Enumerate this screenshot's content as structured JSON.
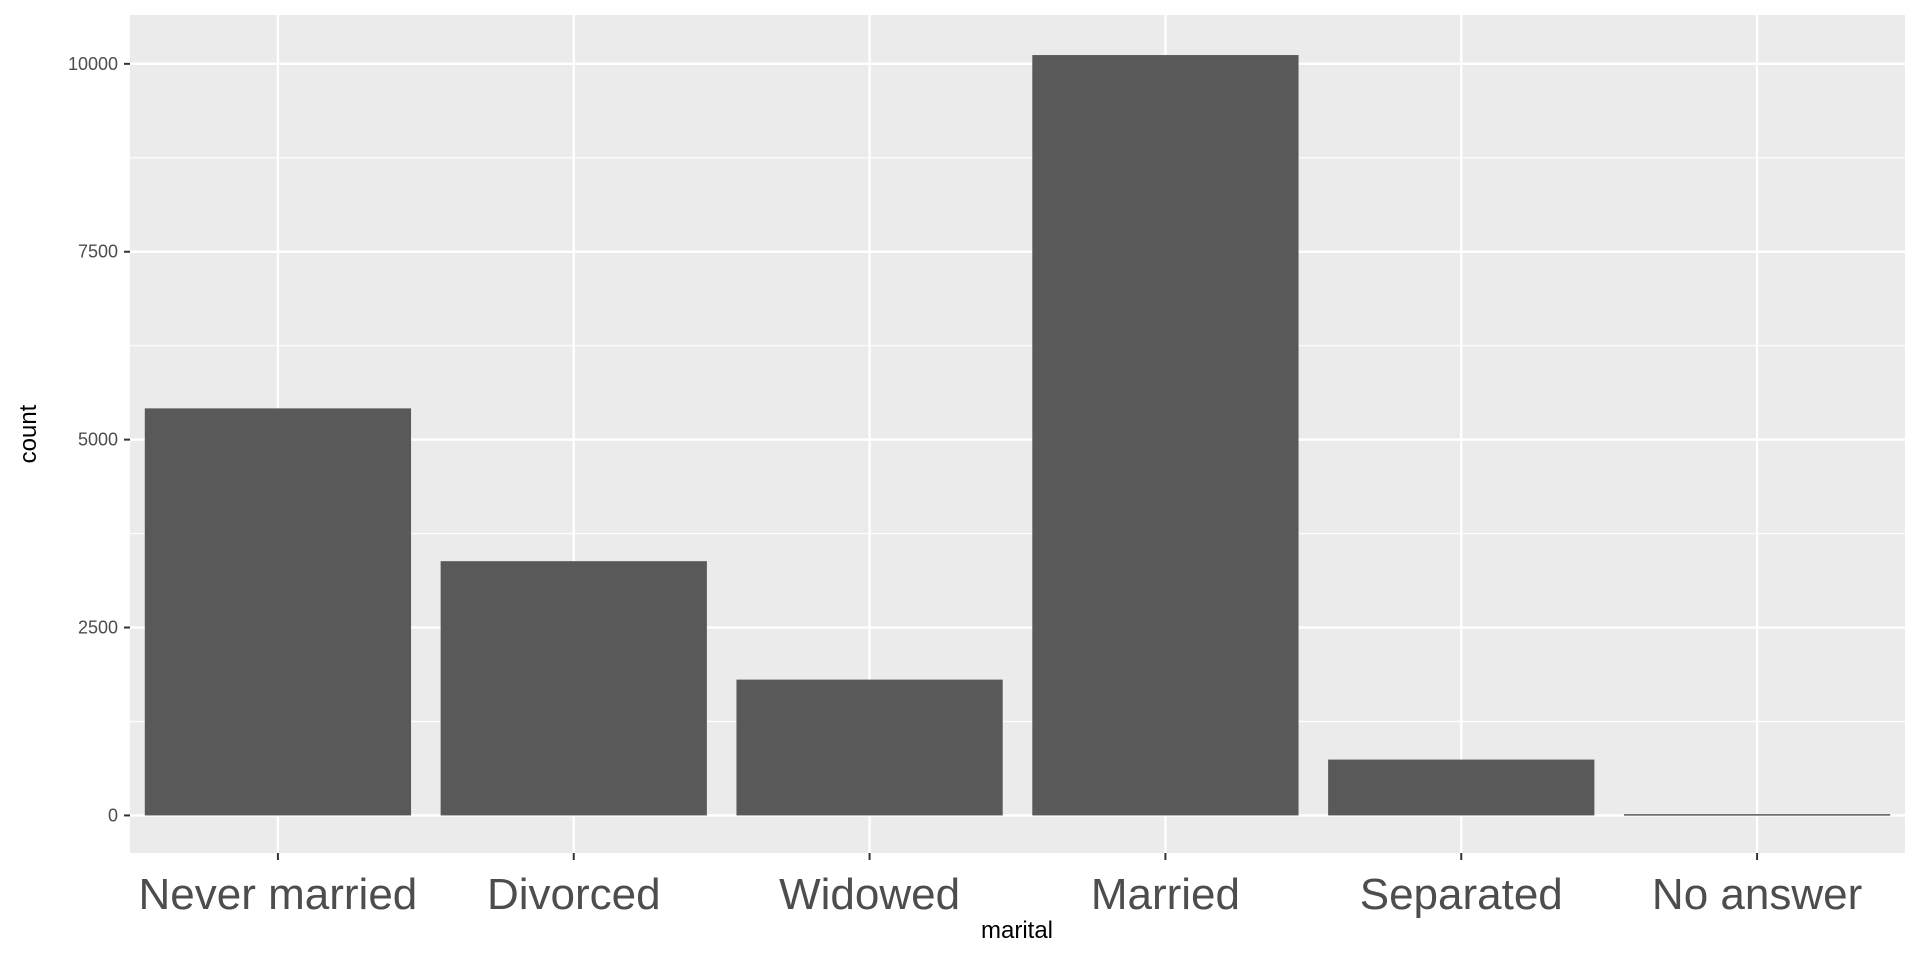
{
  "chart_data": {
    "type": "bar",
    "title": "",
    "xlabel": "marital",
    "ylabel": "count",
    "categories": [
      "Never married",
      "Divorced",
      "Widowed",
      "Married",
      "Separated",
      "No answer"
    ],
    "values": [
      5416,
      3383,
      1807,
      10117,
      743,
      17
    ],
    "ylim": [
      -500,
      10650
    ],
    "yticks": [
      0,
      2500,
      5000,
      7500,
      10000
    ],
    "ytick_labels": [
      "0",
      "2500",
      "5000",
      "7500",
      "10000"
    ],
    "grid": true,
    "legend": "none",
    "colors": {
      "panel_bg": "#ebebeb",
      "grid": "#ffffff",
      "bar": "#595959",
      "tick": "#333333",
      "tick_label": "#4d4d4d"
    }
  }
}
